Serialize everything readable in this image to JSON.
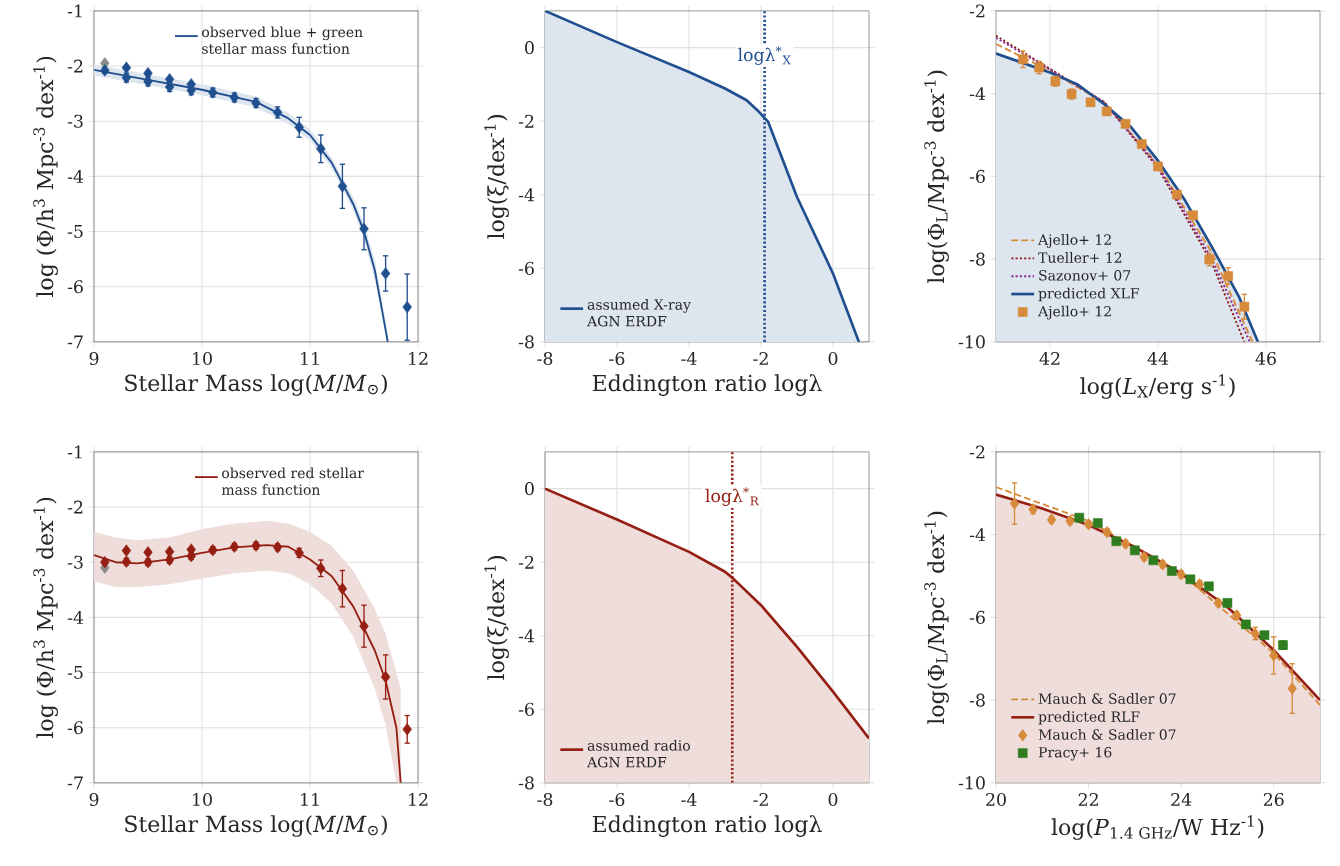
{
  "chart_data": [
    {
      "type": "line",
      "xlabel": "Stellar Mass log(*M*/*M*$_{⊙}$)",
      "ylabel": "log (Φ/h$^{3}$ Mpc$^{-3}$ dex$^{-1}$)",
      "xlim": [
        9,
        12
      ],
      "ylim": [
        -7,
        -1
      ],
      "xticks": [
        9,
        10,
        11,
        12
      ],
      "yticks": [
        -7,
        -6,
        -5,
        -4,
        -3,
        -2,
        -1
      ],
      "grid": true,
      "legend": "top right",
      "series": [
        {
          "name": "observed blue + green stellar mass function",
          "color": "#1f4f8f",
          "x": [
            9,
            9.5,
            10,
            10.5,
            10.8,
            11,
            11.2,
            11.4,
            11.5,
            11.6,
            11.72
          ],
          "values": [
            -2.07,
            -2.25,
            -2.43,
            -2.65,
            -2.95,
            -3.25,
            -3.75,
            -4.5,
            -5.0,
            -5.7,
            -7.0
          ],
          "lower": [
            -2.17,
            -2.35,
            -2.53,
            -2.75,
            -3.05,
            -3.35,
            -3.85,
            -4.62,
            -5.14,
            -5.88,
            -7.0
          ],
          "upper": [
            -1.97,
            -2.15,
            -2.33,
            -2.55,
            -2.85,
            -3.15,
            -3.65,
            -4.38,
            -4.86,
            -5.52,
            -6.85
          ]
        },
        {
          "type": "scatter",
          "color": "#1f4f8f",
          "marker": "diamond",
          "x": [
            9.3,
            9.5,
            9.7,
            9.9
          ],
          "values": [
            -2.03,
            -2.13,
            -2.24,
            -2.33
          ]
        },
        {
          "type": "scatter",
          "color": "#8c8c8c",
          "marker": "diamond",
          "x": [
            9.1
          ],
          "values": [
            -1.95
          ]
        },
        {
          "type": "scatter",
          "color": "#1f4f8f",
          "marker": "diamond",
          "x": [
            9.1,
            9.3,
            9.5,
            9.7,
            9.9,
            10.1,
            10.3,
            10.5,
            10.7,
            10.9,
            11.1,
            11.3,
            11.5,
            11.7,
            11.9
          ],
          "values": [
            -2.08,
            -2.21,
            -2.28,
            -2.38,
            -2.44,
            -2.48,
            -2.57,
            -2.67,
            -2.84,
            -3.11,
            -3.5,
            -4.18,
            -4.95,
            -5.76,
            -6.37
          ],
          "errors": [
            0.05,
            0.08,
            0.08,
            0.08,
            0.08,
            0.08,
            0.08,
            0.08,
            0.1,
            0.18,
            0.25,
            0.4,
            0.38,
            0.32,
            0.6
          ]
        }
      ]
    },
    {
      "type": "line",
      "xlabel": "Eddington ratio logλ",
      "ylabel": "log(ξ/dex$^{-1}$)",
      "xlim": [
        -8,
        1
      ],
      "ylim": [
        -8,
        1
      ],
      "xticks": [
        -8,
        -6,
        -4,
        -2,
        0
      ],
      "yticks": [
        -8,
        -6,
        -4,
        -2,
        0
      ],
      "grid": true,
      "legend": "bottom left",
      "ref_lines": [
        {
          "axis": "x",
          "value": -1.9,
          "label": "logλ$^{*}$$_{X}$",
          "color": "#1f4f8f",
          "line_style": "dotted"
        }
      ],
      "series": [
        {
          "name": "assumed X-ray AGN ERDF",
          "color": "#1f4f8f",
          "x": [
            -8,
            -6,
            -4,
            -3,
            -2.4,
            -2.1,
            -1.8,
            -1,
            0,
            0.72
          ],
          "values": [
            1.0,
            0.15,
            -0.66,
            -1.11,
            -1.43,
            -1.7,
            -2.02,
            -4.06,
            -6.14,
            -8.0
          ],
          "lower": [
            -8,
            -8,
            -8,
            -8,
            -8,
            -8,
            -8,
            -8,
            -8,
            -8
          ],
          "upper": [
            1.0,
            0.15,
            -0.66,
            -1.11,
            -1.43,
            -1.7,
            -2.02,
            -4.06,
            -6.14,
            -8.0
          ]
        }
      ]
    },
    {
      "type": "line",
      "xlabel": "log(*L*$_{X}$/erg s$^{-1}$)",
      "ylabel": "log(Φ$_{L}$/Mpc$^{-3}$ dex$^{-1}$)",
      "xlim": [
        41,
        47
      ],
      "ylim": [
        -10,
        -2
      ],
      "xticks": [
        42,
        44,
        46
      ],
      "yticks": [
        -10,
        -8,
        -6,
        -4,
        -2
      ],
      "grid": true,
      "legend": "bottom left",
      "series": [
        {
          "name": "Ajello+ 12",
          "line_style": "dashed",
          "color": "#d68a3a",
          "x": [
            41,
            42,
            43,
            44,
            45,
            45.75
          ],
          "values": [
            -2.8,
            -3.45,
            -4.22,
            -5.72,
            -7.85,
            -10.0
          ]
        },
        {
          "name": "Tueller+ 12",
          "line_style": "dotted",
          "color": "#8b1c1c",
          "x": [
            41,
            42,
            43,
            44,
            45,
            45.6
          ],
          "values": [
            -2.6,
            -3.4,
            -4.2,
            -5.8,
            -8.1,
            -10.0
          ]
        },
        {
          "name": "Sazonov+ 07",
          "line_style": "dotted",
          "color": "#8e2c96",
          "x": [
            41,
            42,
            43,
            44,
            45,
            45.7
          ],
          "values": [
            -2.65,
            -3.42,
            -4.2,
            -5.75,
            -8.0,
            -10.0
          ]
        },
        {
          "name": "predicted XLF",
          "color": "#1f4f8f",
          "x": [
            41,
            42,
            42.5,
            43,
            43.5,
            44,
            44.5,
            45,
            45.5,
            45.85
          ],
          "values": [
            -3.03,
            -3.49,
            -3.77,
            -4.25,
            -4.81,
            -5.62,
            -6.58,
            -7.71,
            -8.91,
            -10.0
          ],
          "lower": [
            -10,
            -10,
            -10,
            -10,
            -10,
            -10,
            -10,
            -10,
            -10,
            -10
          ],
          "upper": [
            -3.03,
            -3.49,
            -3.77,
            -4.25,
            -4.81,
            -5.62,
            -6.58,
            -7.71,
            -8.91,
            -10.0
          ]
        },
        {
          "name": "Ajello+ 12",
          "type": "scatter",
          "marker": "square",
          "color": "#d68a3a",
          "x": [
            41.5,
            41.8,
            42.1,
            42.4,
            42.75,
            43.05,
            43.4,
            43.7,
            44.0,
            44.35,
            44.65,
            44.95,
            45.3,
            45.6
          ],
          "values": [
            -3.17,
            -3.37,
            -3.7,
            -4.01,
            -4.21,
            -4.43,
            -4.73,
            -5.22,
            -5.76,
            -6.44,
            -6.94,
            -8.01,
            -8.41,
            -9.15
          ],
          "errors": [
            0.2,
            0.15,
            0.12,
            0.12,
            0.08,
            0.08,
            0.08,
            0.08,
            0.08,
            0.08,
            0.08,
            0.15,
            0.2,
            0.3
          ]
        }
      ]
    },
    {
      "type": "line",
      "xlabel": "Stellar Mass log(*M*/*M*$_{⊙}$)",
      "ylabel": "log (Φ/h$^{3}$ Mpc$^{-3}$ dex$^{-1}$)",
      "xlim": [
        9,
        12
      ],
      "ylim": [
        -7,
        -1
      ],
      "xticks": [
        9,
        10,
        11,
        12
      ],
      "yticks": [
        -7,
        -6,
        -5,
        -4,
        -3,
        -2,
        -1
      ],
      "grid": true,
      "legend": "top right",
      "series": [
        {
          "name": "observed red stellar mass function",
          "color": "#951f12",
          "x": [
            9,
            9.2,
            9.4,
            9.7,
            10,
            10.3,
            10.6,
            10.8,
            11,
            11.2,
            11.4,
            11.6,
            11.7,
            11.8,
            11.84
          ],
          "values": [
            -2.87,
            -3.0,
            -3.02,
            -2.95,
            -2.83,
            -2.73,
            -2.69,
            -2.72,
            -2.95,
            -3.25,
            -3.8,
            -4.6,
            -5.15,
            -6.0,
            -7.0
          ],
          "lower": [
            -3.35,
            -3.45,
            -3.45,
            -3.4,
            -3.3,
            -3.2,
            -3.15,
            -3.2,
            -3.4,
            -3.75,
            -4.35,
            -5.3,
            -5.95,
            -7.0,
            -7.0
          ],
          "upper": [
            -2.45,
            -2.55,
            -2.6,
            -2.55,
            -2.4,
            -2.3,
            -2.25,
            -2.3,
            -2.45,
            -2.7,
            -3.15,
            -3.85,
            -4.3,
            -5.0,
            -5.3
          ]
        },
        {
          "type": "scatter",
          "color": "#951f12",
          "marker": "diamond",
          "x": [
            9.3,
            9.5,
            9.7,
            9.9
          ],
          "values": [
            -2.79,
            -2.82,
            -2.81,
            -2.77
          ]
        },
        {
          "type": "scatter",
          "color": "#8c8c8c",
          "marker": "diamond",
          "x": [
            9.1
          ],
          "values": [
            -3.1
          ]
        },
        {
          "type": "scatter",
          "color": "#951f12",
          "marker": "diamond",
          "x": [
            9.1,
            9.3,
            9.5,
            9.7,
            9.9,
            10.1,
            10.3,
            10.5,
            10.7,
            10.9,
            11.1,
            11.3,
            11.5,
            11.7,
            11.9
          ],
          "values": [
            -3.0,
            -2.99,
            -3.0,
            -2.96,
            -2.89,
            -2.78,
            -2.72,
            -2.7,
            -2.73,
            -2.83,
            -3.11,
            -3.48,
            -4.16,
            -5.08,
            -6.03
          ],
          "errors": [
            0.05,
            0.06,
            0.06,
            0.06,
            0.06,
            0.06,
            0.06,
            0.06,
            0.06,
            0.08,
            0.15,
            0.33,
            0.38,
            0.4,
            0.25
          ]
        }
      ]
    },
    {
      "type": "line",
      "xlabel": "Eddington ratio logλ",
      "ylabel": "log(ξ/dex$^{-1}$)",
      "xlim": [
        -8,
        1
      ],
      "ylim": [
        -8,
        1
      ],
      "xticks": [
        -8,
        -6,
        -4,
        -2,
        0
      ],
      "yticks": [
        -8,
        -6,
        -4,
        -2,
        0
      ],
      "grid": true,
      "legend": "bottom left",
      "ref_lines": [
        {
          "axis": "x",
          "value": -2.8,
          "label": "logλ$^{*}$$_{R}$",
          "color": "#951f12",
          "line_style": "dotted"
        }
      ],
      "series": [
        {
          "name": "assumed radio AGN ERDF",
          "color": "#951f12",
          "x": [
            -8,
            -6,
            -4,
            -3,
            -2.8,
            -2,
            -1,
            0,
            1
          ],
          "values": [
            0,
            -0.84,
            -1.72,
            -2.26,
            -2.42,
            -3.17,
            -4.3,
            -5.52,
            -6.79
          ],
          "lower": [
            -8,
            -8,
            -8,
            -8,
            -8,
            -8,
            -8,
            -8,
            -8
          ],
          "upper": [
            0,
            -0.84,
            -1.72,
            -2.26,
            -2.42,
            -3.17,
            -4.3,
            -5.52,
            -6.79
          ]
        }
      ]
    },
    {
      "type": "line",
      "xlabel": "log(*P*$_{1.4 GHz}$/W Hz$^{-1}$)",
      "ylabel": "log(Φ$_{L}$/Mpc$^{-3}$ dex$^{-1}$)",
      "xlim": [
        20,
        27
      ],
      "ylim": [
        -10,
        -2
      ],
      "xticks": [
        20,
        22,
        24,
        26
      ],
      "yticks": [
        -10,
        -8,
        -6,
        -4,
        -2
      ],
      "grid": true,
      "legend": "bottom left",
      "series": [
        {
          "name": "Mauch & Sadler 07",
          "line_style": "dashed",
          "color": "#d68a3a",
          "x": [
            20,
            22,
            24,
            26,
            27
          ],
          "values": [
            -2.85,
            -3.67,
            -4.94,
            -6.87,
            -8.12
          ]
        },
        {
          "name": "predicted RLF",
          "color": "#951f12",
          "x": [
            20,
            21,
            22,
            23,
            24,
            25,
            26,
            27
          ],
          "values": [
            -3.03,
            -3.37,
            -3.77,
            -4.3,
            -4.94,
            -5.75,
            -6.79,
            -8.0
          ],
          "lower": [
            -10,
            -10,
            -10,
            -10,
            -10,
            -10,
            -10,
            -10
          ],
          "upper": [
            -3.03,
            -3.37,
            -3.77,
            -4.3,
            -4.94,
            -5.75,
            -6.79,
            -8.0
          ]
        },
        {
          "name": "Mauch & Sadler 07",
          "type": "scatter",
          "marker": "diamond",
          "color": "#d68a3a",
          "x": [
            20.4,
            20.8,
            21.2,
            21.6,
            22.0,
            22.4,
            22.8,
            23.2,
            23.6,
            24.0,
            24.4,
            24.8,
            25.2,
            25.6,
            26.0,
            26.4
          ],
          "values": [
            -3.25,
            -3.39,
            -3.64,
            -3.67,
            -3.75,
            -3.94,
            -4.22,
            -4.54,
            -4.72,
            -4.96,
            -5.2,
            -5.65,
            -5.95,
            -6.39,
            -6.92,
            -7.72
          ],
          "errors": [
            0.5,
            0.1,
            0.08,
            0.08,
            0.08,
            0.08,
            0.08,
            0.08,
            0.08,
            0.08,
            0.08,
            0.08,
            0.08,
            0.15,
            0.45,
            0.6
          ]
        },
        {
          "name": "Pracy+ 16",
          "type": "scatter",
          "marker": "square",
          "color": "#2f7d1f",
          "x": [
            21.8,
            22.2,
            22.6,
            23.0,
            23.4,
            23.8,
            24.2,
            24.6,
            25.0,
            25.4,
            25.8,
            26.2
          ],
          "values": [
            -3.59,
            -3.72,
            -4.16,
            -4.38,
            -4.62,
            -4.88,
            -5.08,
            -5.25,
            -5.65,
            -6.17,
            -6.43,
            -6.67
          ],
          "errors": [
            0.05,
            0.05,
            0.05,
            0.05,
            0.05,
            0.05,
            0.05,
            0.05,
            0.05,
            0.05,
            0.05,
            0.1
          ]
        }
      ]
    }
  ]
}
